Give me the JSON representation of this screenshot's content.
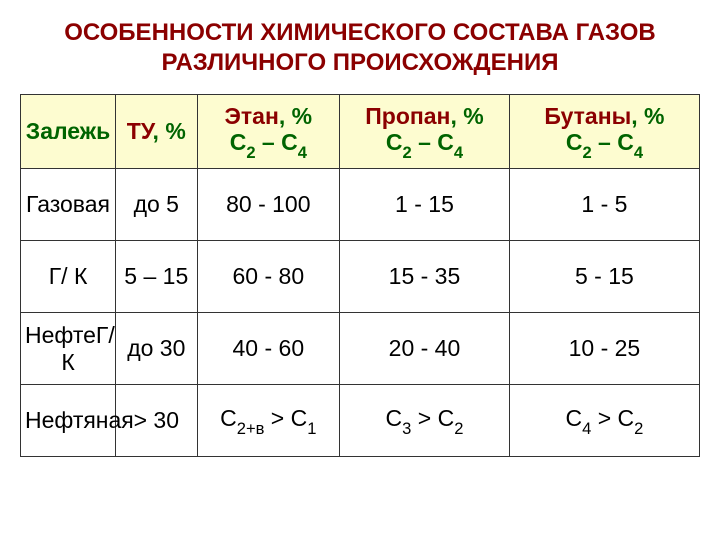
{
  "title": {
    "line1": "ОСОБЕННОСТИ ХИМИЧЕСКОГО СОСТАВА ГАЗОВ",
    "line2": "РАЗЛИЧНОГО ПРОИСХОЖДЕНИЯ",
    "color": "#8b0000",
    "fontsize": 24
  },
  "table": {
    "header_bg": "#fdfcd0",
    "header_text_main_color": "#006400",
    "header_text_accent_color": "#8b0000",
    "border_color": "#333333",
    "body_text_color": "#000000",
    "column_widths_pct": [
      14,
      12,
      21,
      25,
      28
    ],
    "fontsize": 23,
    "columns": [
      {
        "kind": "plain",
        "text": "Залежь"
      },
      {
        "kind": "tu",
        "label": "ТУ",
        "pct": ", %"
      },
      {
        "kind": "frac",
        "label": "Этан",
        "pct": ", %",
        "sub_a": "2",
        "sub_b": "4"
      },
      {
        "kind": "frac",
        "label": "Пропан",
        "pct": ", %",
        "sub_a": "2",
        "sub_b": "4"
      },
      {
        "kind": "frac",
        "label": "Бутаны",
        "pct": ", %",
        "sub_a": "2",
        "sub_b": "4"
      }
    ],
    "rows": [
      {
        "label": "Газовая",
        "tu": "до 5",
        "cells": [
          {
            "kind": "text",
            "value": "80 - 100"
          },
          {
            "kind": "text",
            "value": "1 - 15"
          },
          {
            "kind": "text",
            "value": "1 - 5"
          }
        ]
      },
      {
        "label": "Г/ К",
        "tu": "5 – 15",
        "cells": [
          {
            "kind": "text",
            "value": "60 - 80"
          },
          {
            "kind": "text",
            "value": "15 - 35"
          },
          {
            "kind": "text",
            "value": "5 - 15"
          }
        ]
      },
      {
        "label": "НефтеГ/ К",
        "tu": "до 30",
        "cells": [
          {
            "kind": "text",
            "value": "40 - 60"
          },
          {
            "kind": "text",
            "value": "20 - 40"
          },
          {
            "kind": "text",
            "value": "10 - 25"
          }
        ]
      },
      {
        "label": "Нефтяная",
        "tu": "> 30",
        "cells": [
          {
            "kind": "cmp",
            "left_sub": "2+в",
            "right_sub": "1"
          },
          {
            "kind": "cmp",
            "left_sub": "3",
            "right_sub": "2"
          },
          {
            "kind": "cmp",
            "left_sub": "4",
            "right_sub": "2"
          }
        ]
      }
    ]
  }
}
